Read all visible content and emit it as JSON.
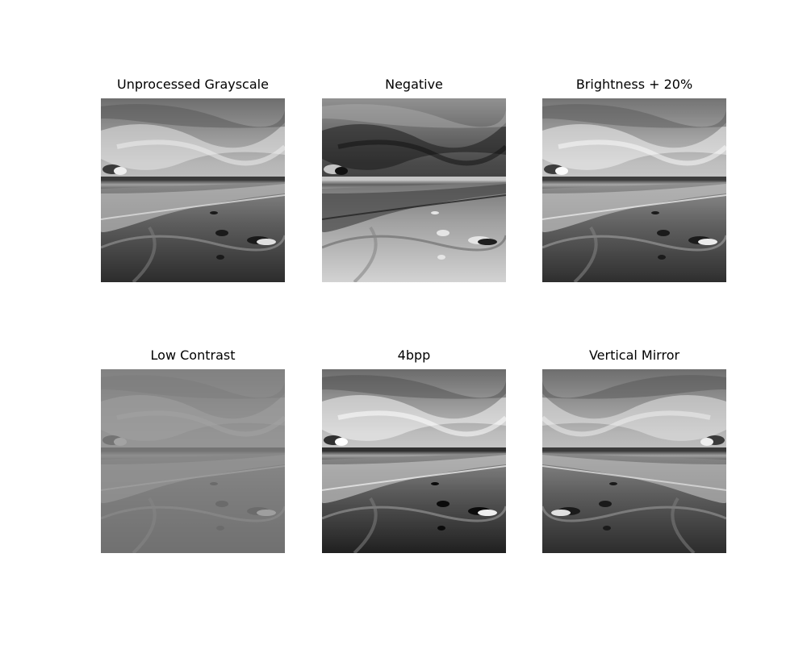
{
  "figure": {
    "panels": [
      {
        "title": "Unprocessed Grayscale",
        "variant": "original"
      },
      {
        "title": "Negative",
        "variant": "negative"
      },
      {
        "title": "Brightness + 20%",
        "variant": "brightness"
      },
      {
        "title": "Low Contrast",
        "variant": "low-contrast"
      },
      {
        "title": "4bpp",
        "variant": "posterized-4bpp"
      },
      {
        "title": "Vertical Mirror",
        "variant": "mirror"
      }
    ]
  }
}
